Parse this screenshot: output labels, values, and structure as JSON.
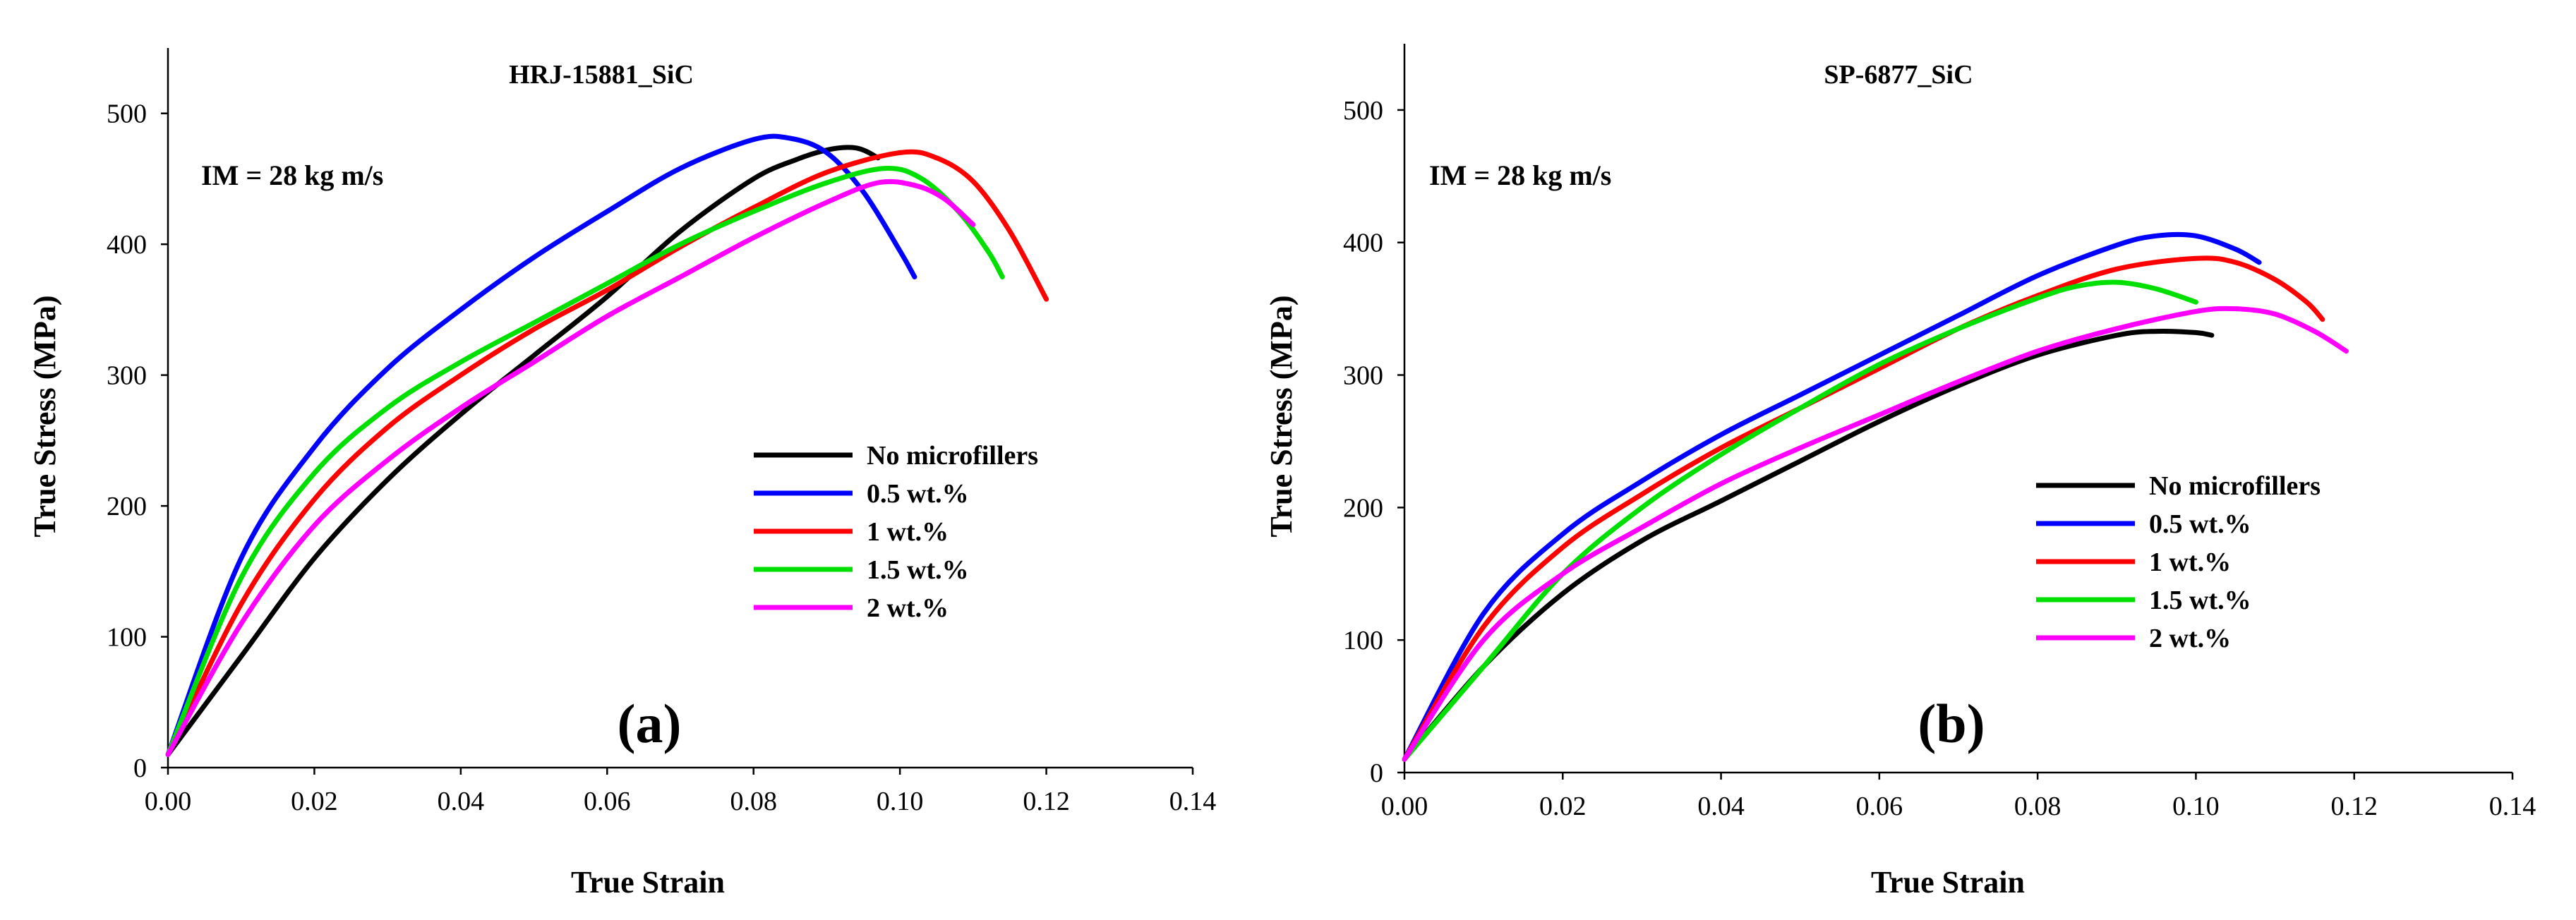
{
  "chart_data": [
    {
      "type": "line",
      "panel_label": "(a)",
      "title": "HRJ-15881_SiC",
      "annotation": "IM = 28 kg m/s",
      "xlabel": "True Strain",
      "ylabel": "True Stress (MPa)",
      "xlim": [
        0,
        0.14
      ],
      "ylim": [
        0,
        550
      ],
      "xticks": [
        "0.00",
        "0.02",
        "0.04",
        "0.06",
        "0.08",
        "0.10",
        "0.12",
        "0.14"
      ],
      "yticks": [
        "0",
        "100",
        "200",
        "300",
        "400",
        "500"
      ],
      "legend_position": "center-right",
      "series": [
        {
          "name": "No microfillers",
          "color": "#000000",
          "x": [
            0,
            0.01,
            0.02,
            0.03,
            0.04,
            0.05,
            0.06,
            0.07,
            0.08,
            0.086,
            0.09,
            0.093,
            0.095,
            0.097
          ],
          "y": [
            10,
            85,
            160,
            220,
            270,
            315,
            360,
            410,
            450,
            465,
            472,
            474,
            472,
            466
          ]
        },
        {
          "name": "0.5 wt.%",
          "color": "#0000ff",
          "x": [
            0,
            0.01,
            0.02,
            0.03,
            0.04,
            0.05,
            0.06,
            0.07,
            0.08,
            0.085,
            0.09,
            0.095,
            0.1,
            0.102
          ],
          "y": [
            10,
            160,
            245,
            305,
            350,
            390,
            425,
            458,
            480,
            481,
            470,
            440,
            395,
            375
          ]
        },
        {
          "name": "1 wt.%",
          "color": "#ff0000",
          "x": [
            0,
            0.01,
            0.02,
            0.03,
            0.04,
            0.05,
            0.06,
            0.07,
            0.08,
            0.09,
            0.1,
            0.105,
            0.11,
            0.115,
            0.12
          ],
          "y": [
            10,
            125,
            205,
            260,
            300,
            335,
            365,
            398,
            428,
            455,
            470,
            466,
            448,
            410,
            358
          ]
        },
        {
          "name": "1.5 wt.%",
          "color": "#00e000",
          "x": [
            0,
            0.01,
            0.02,
            0.03,
            0.04,
            0.05,
            0.06,
            0.07,
            0.08,
            0.09,
            0.098,
            0.103,
            0.108,
            0.112,
            0.114
          ],
          "y": [
            10,
            145,
            225,
            275,
            310,
            340,
            370,
            400,
            425,
            447,
            458,
            450,
            425,
            395,
            375
          ]
        },
        {
          "name": "2 wt.%",
          "color": "#ff00ff",
          "x": [
            0,
            0.01,
            0.02,
            0.03,
            0.04,
            0.05,
            0.06,
            0.07,
            0.08,
            0.09,
            0.097,
            0.102,
            0.106,
            0.11
          ],
          "y": [
            10,
            110,
            185,
            235,
            275,
            310,
            345,
            375,
            405,
            432,
            447,
            445,
            435,
            415
          ]
        }
      ]
    },
    {
      "type": "line",
      "panel_label": "(b)",
      "title": "SP-6877_SiC",
      "annotation": "IM = 28 kg m/s",
      "xlabel": "True Strain",
      "ylabel": "True Stress (MPa)",
      "xlim": [
        0,
        0.14
      ],
      "ylim": [
        0,
        550
      ],
      "xticks": [
        "0.00",
        "0.02",
        "0.04",
        "0.06",
        "0.08",
        "0.10",
        "0.12",
        "0.14"
      ],
      "yticks": [
        "0",
        "100",
        "200",
        "300",
        "400",
        "500"
      ],
      "legend_position": "center-right",
      "series": [
        {
          "name": "No microfillers",
          "color": "#000000",
          "x": [
            0,
            0.01,
            0.02,
            0.03,
            0.04,
            0.05,
            0.06,
            0.07,
            0.08,
            0.09,
            0.095,
            0.1,
            0.102
          ],
          "y": [
            10,
            80,
            135,
            175,
            205,
            235,
            265,
            292,
            315,
            330,
            333,
            332,
            330
          ]
        },
        {
          "name": "0.5 wt.%",
          "color": "#0000ff",
          "x": [
            0,
            0.01,
            0.02,
            0.03,
            0.04,
            0.05,
            0.06,
            0.07,
            0.08,
            0.09,
            0.095,
            0.1,
            0.105,
            0.108
          ],
          "y": [
            10,
            120,
            180,
            220,
            255,
            285,
            315,
            345,
            375,
            398,
            405,
            405,
            395,
            385
          ]
        },
        {
          "name": "1 wt.%",
          "color": "#ff0000",
          "x": [
            0,
            0.01,
            0.02,
            0.03,
            0.04,
            0.05,
            0.06,
            0.07,
            0.08,
            0.09,
            0.1,
            0.105,
            0.11,
            0.114,
            0.116
          ],
          "y": [
            10,
            110,
            170,
            210,
            245,
            275,
            305,
            335,
            360,
            380,
            388,
            385,
            372,
            355,
            342
          ]
        },
        {
          "name": "1.5 wt.%",
          "color": "#00e000",
          "x": [
            0,
            0.01,
            0.02,
            0.03,
            0.04,
            0.05,
            0.06,
            0.07,
            0.08,
            0.085,
            0.09,
            0.095,
            0.1
          ],
          "y": [
            10,
            80,
            150,
            200,
            240,
            275,
            308,
            335,
            358,
            367,
            370,
            365,
            355
          ]
        },
        {
          "name": "2 wt.%",
          "color": "#ff00ff",
          "x": [
            0,
            0.01,
            0.02,
            0.03,
            0.04,
            0.05,
            0.06,
            0.07,
            0.08,
            0.09,
            0.1,
            0.105,
            0.11,
            0.115,
            0.119
          ],
          "y": [
            10,
            100,
            150,
            185,
            218,
            245,
            270,
            295,
            318,
            335,
            348,
            350,
            346,
            333,
            318
          ]
        }
      ]
    }
  ]
}
